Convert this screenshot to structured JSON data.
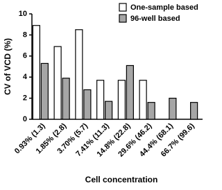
{
  "chart_data": {
    "type": "bar",
    "y_label": "CV of VCD (%)",
    "x_label": "Cell concentration",
    "categories": [
      "0.93% (1.3)",
      "1.85% (2.8)",
      "3.70% (5.7)",
      "7.41% (11.3)",
      "14.8% (22.8)",
      "29.6% (46.2)",
      "44.4% (68.1)",
      "66.7% (99.6)"
    ],
    "series": [
      {
        "name": "One-sample based",
        "color": "#ffffff",
        "values": [
          8.9,
          6.9,
          8.5,
          3.7,
          3.7,
          3.7,
          null,
          null
        ]
      },
      {
        "name": "96-well based",
        "color": "#a6a6a6",
        "values": [
          5.3,
          3.9,
          2.8,
          1.7,
          5.1,
          1.6,
          2.0,
          1.6
        ]
      }
    ],
    "ylim": [
      0,
      10
    ],
    "yticks": [
      0,
      2,
      4,
      6,
      8,
      10
    ],
    "legend": "top-right"
  }
}
